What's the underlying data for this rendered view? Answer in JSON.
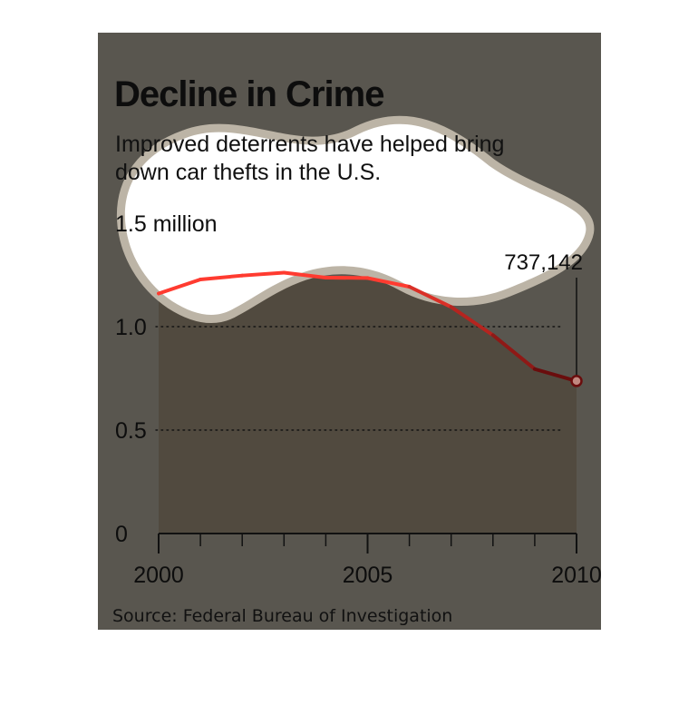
{
  "chart_data": {
    "type": "area",
    "title": "Decline in Crime",
    "subtitle": "Improved deterrents have helped bring down car thefts in the U.S.",
    "source": "Source: Federal Bureau of Investigation",
    "x": [
      2000,
      2001,
      2002,
      2003,
      2004,
      2005,
      2006,
      2007,
      2008,
      2009,
      2010
    ],
    "series": [
      {
        "values": [
          1160000,
          1228000,
          1247000,
          1261000,
          1237000,
          1235000,
          1193000,
          1095000,
          959000,
          795000,
          737142
        ]
      }
    ],
    "xlim": [
      2000,
      2010
    ],
    "ylim": [
      0,
      1.5
    ],
    "y_unit": "million",
    "x_ticks": [
      {
        "value": 2000,
        "label": "2000"
      },
      {
        "value": 2005,
        "label": "2005"
      },
      {
        "value": 2010,
        "label": "2010"
      }
    ],
    "y_ticks": [
      {
        "value": 0,
        "label": "0"
      },
      {
        "value": 0.5,
        "label": "0.5"
      },
      {
        "value": 1.0,
        "label": "1.0"
      },
      {
        "value": 1.5,
        "label": "1.5 million"
      }
    ],
    "annotation": {
      "x": 2010,
      "value": 737142,
      "label": "737,142"
    },
    "grid": "dotted horizontal lines",
    "colors": {
      "panel": "#59564f",
      "area_fill": "#514a3f",
      "line_upper": "#ff3b30",
      "line_lower": "#6a0d0d",
      "highlight_blob": "#ffffff",
      "highlight_rim": "#bcb4a6"
    }
  }
}
